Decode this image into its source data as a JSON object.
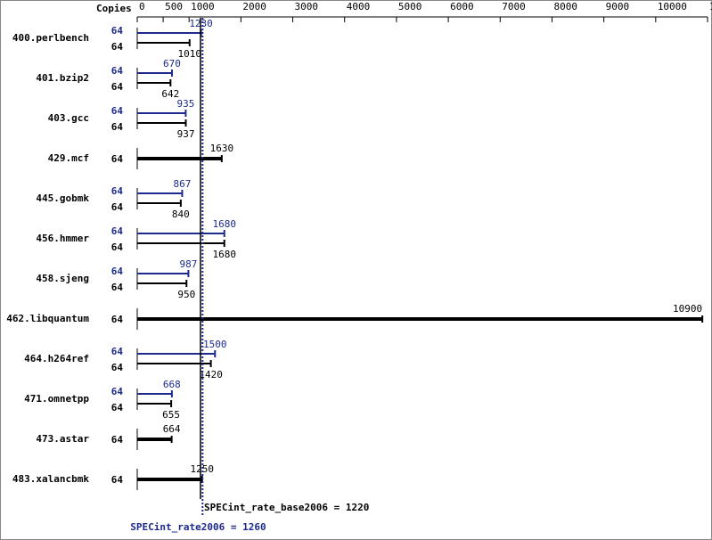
{
  "chart_data": {
    "type": "bar",
    "orientation": "horizontal",
    "x_axis_label": "Copies",
    "categories": [
      "400.perlbench",
      "401.bzip2",
      "403.gcc",
      "429.mcf",
      "445.gobmk",
      "456.hmmer",
      "458.sjeng",
      "462.libquantum",
      "464.h264ref",
      "471.omnetpp",
      "473.astar",
      "483.xalancbmk"
    ],
    "xlim": [
      0,
      11000
    ],
    "xticks": [
      0,
      500,
      1000,
      2000,
      3000,
      4000,
      5000,
      6000,
      7000,
      8000,
      9000,
      10000,
      11000
    ],
    "series": [
      {
        "color": "#000000",
        "copies": [
          64,
          64,
          64,
          64,
          64,
          64,
          64,
          64,
          64,
          64,
          64,
          64
        ],
        "values": [
          1010,
          642,
          937,
          1630,
          840,
          1680,
          950,
          10900,
          1420,
          655,
          664,
          1250
        ]
      },
      {
        "color": "#1c2a8c",
        "copies": [
          64,
          64,
          64,
          null,
          64,
          64,
          64,
          null,
          64,
          64,
          null,
          null
        ],
        "values": [
          1230,
          670,
          935,
          null,
          867,
          1680,
          987,
          null,
          1500,
          668,
          null,
          null
        ]
      }
    ],
    "reference_lines": [
      {
        "label": "SPECint_rate_base2006 = 1220",
        "value": 1220,
        "color": "#000000"
      },
      {
        "label": "SPECint_rate2006 = 1260",
        "value": 1260,
        "color": "#1c2a8c"
      }
    ]
  }
}
